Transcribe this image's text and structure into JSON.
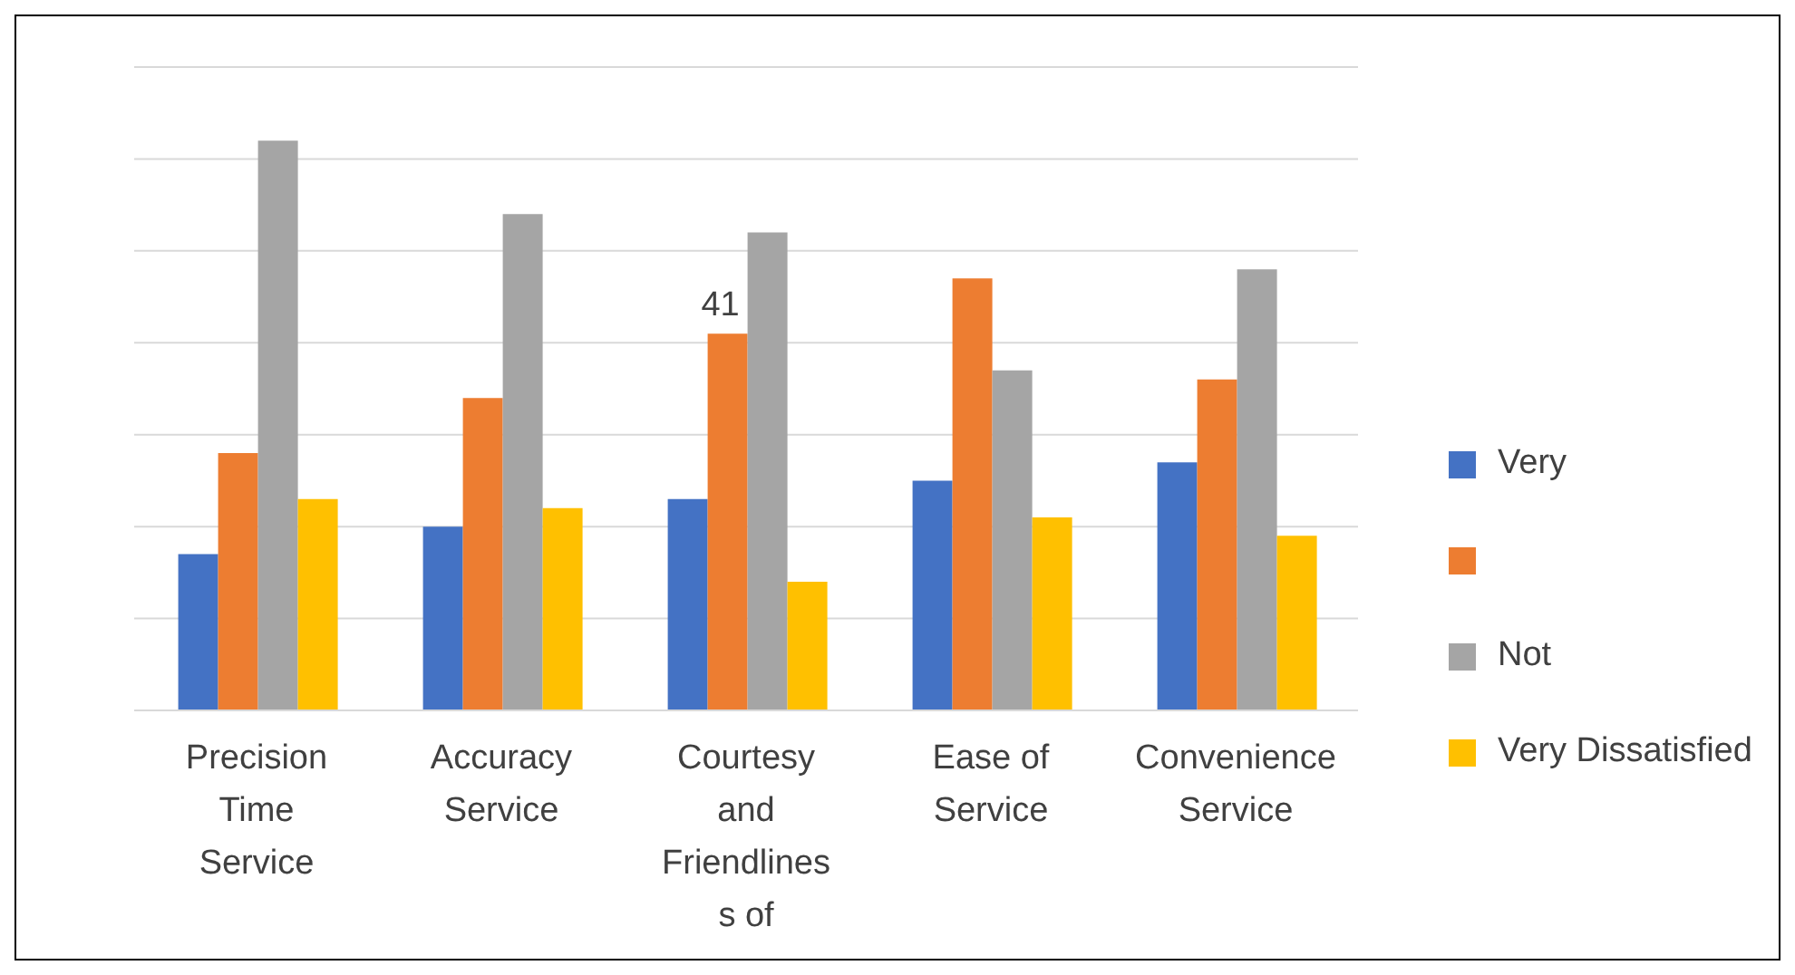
{
  "chart_data": {
    "type": "bar",
    "categories": [
      "Precision Time Service",
      "Accuracy Service",
      "Courtesy and Friendlines s of",
      "Ease of Service",
      "Convenience Service"
    ],
    "series": [
      {
        "name": "Very",
        "color": "#4472c4",
        "values": [
          17,
          20,
          23,
          25,
          27
        ]
      },
      {
        "color": "#ed7d31",
        "values": [
          28,
          34,
          41,
          47,
          36
        ],
        "value_labels": [
          null,
          null,
          "41",
          null,
          null
        ]
      },
      {
        "name": "Not",
        "color": "#a5a5a5",
        "values": [
          62,
          54,
          52,
          37,
          48
        ]
      },
      {
        "name": "Very Dissatisfied",
        "color": "#ffc000",
        "values": [
          23,
          22,
          14,
          21,
          19
        ]
      }
    ],
    "ylim": [
      0,
      70
    ],
    "tick_labels": "x",
    "grid": "y",
    "legend": "right"
  }
}
